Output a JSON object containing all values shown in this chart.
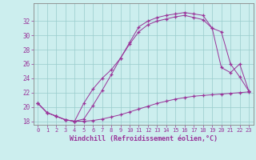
{
  "xlabel": "Windchill (Refroidissement éolien,°C)",
  "bg_color": "#cceeee",
  "line_color": "#993399",
  "grid_color": "#99cccc",
  "xlim": [
    -0.5,
    23.5
  ],
  "ylim": [
    17.5,
    34.5
  ],
  "yticks": [
    18,
    20,
    22,
    24,
    26,
    28,
    30,
    32
  ],
  "xticks": [
    0,
    1,
    2,
    3,
    4,
    5,
    6,
    7,
    8,
    9,
    10,
    11,
    12,
    13,
    14,
    15,
    16,
    17,
    18,
    19,
    20,
    21,
    22,
    23
  ],
  "series1_x": [
    0,
    1,
    2,
    3,
    4,
    5,
    6,
    7,
    8,
    9,
    10,
    11,
    12,
    13,
    14,
    15,
    16,
    17,
    18,
    19,
    20,
    21,
    22,
    23
  ],
  "series1_y": [
    20.5,
    19.2,
    18.7,
    18.2,
    18.0,
    18.0,
    18.1,
    18.3,
    18.6,
    18.9,
    19.3,
    19.7,
    20.1,
    20.5,
    20.8,
    21.1,
    21.3,
    21.5,
    21.6,
    21.7,
    21.8,
    21.9,
    22.0,
    22.1
  ],
  "series2_x": [
    0,
    1,
    2,
    3,
    4,
    5,
    6,
    7,
    8,
    9,
    10,
    11,
    12,
    13,
    14,
    15,
    16,
    17,
    18,
    19,
    20,
    21,
    22,
    23
  ],
  "series2_y": [
    20.5,
    19.2,
    18.7,
    18.2,
    18.0,
    18.3,
    20.2,
    22.3,
    24.5,
    26.8,
    29.0,
    31.2,
    32.0,
    32.5,
    32.8,
    33.0,
    33.2,
    33.0,
    32.8,
    31.0,
    30.5,
    26.0,
    24.2,
    22.2
  ],
  "series3_x": [
    0,
    1,
    2,
    3,
    4,
    5,
    6,
    7,
    8,
    9,
    10,
    11,
    12,
    13,
    14,
    15,
    16,
    17,
    18,
    19,
    20,
    21,
    22,
    23
  ],
  "series3_y": [
    20.5,
    19.2,
    18.7,
    18.2,
    18.0,
    20.5,
    22.5,
    24.0,
    25.2,
    26.8,
    28.8,
    30.5,
    31.5,
    32.0,
    32.3,
    32.6,
    32.8,
    32.5,
    32.2,
    31.0,
    25.5,
    24.8,
    26.0,
    22.2
  ]
}
